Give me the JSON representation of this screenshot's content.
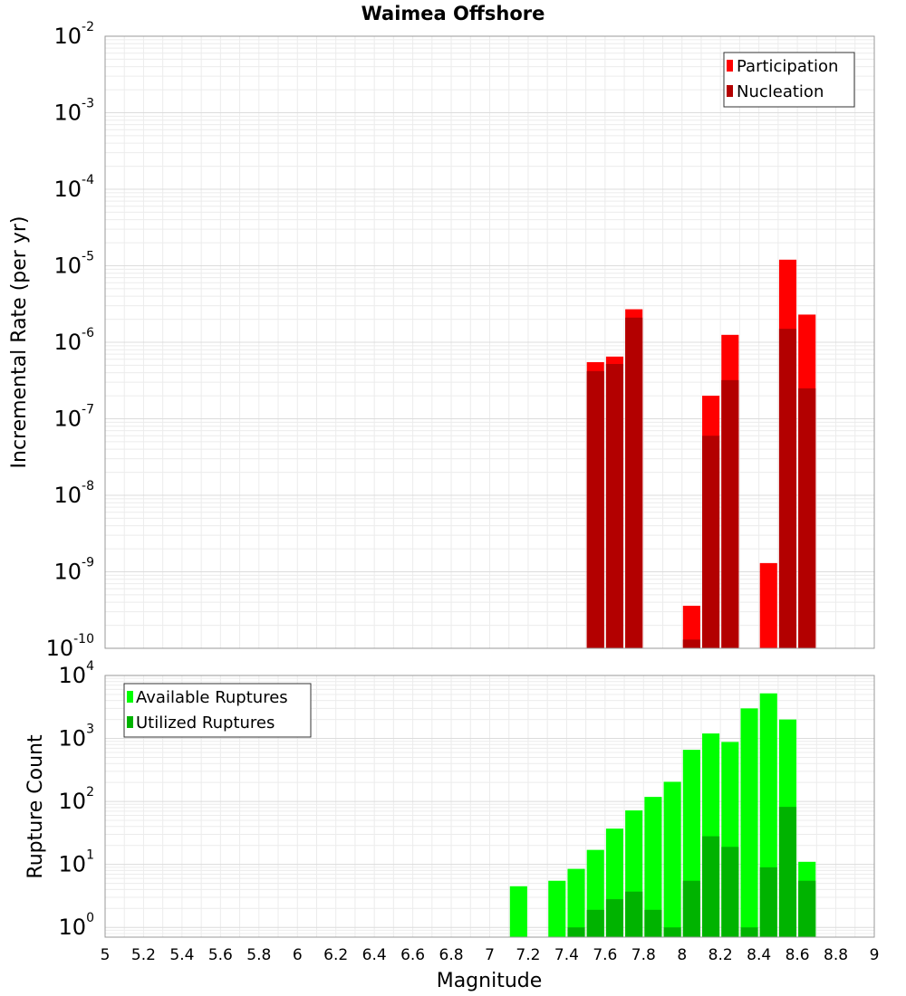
{
  "chart_data": [
    {
      "type": "bar",
      "title": "Waimea Offshore",
      "xlabel": "",
      "ylabel": "Incremental Rate (per yr)",
      "yscale": "log",
      "ylim": [
        1e-10,
        0.01
      ],
      "xlim": [
        5,
        9
      ],
      "ytick_exponents": [
        "-2",
        "-3",
        "-4",
        "-5",
        "-6",
        "-7",
        "-8",
        "-9",
        "-10"
      ],
      "ytick_base": "10",
      "grid": true,
      "legend_position": "top-right",
      "colors": {
        "Participation": "#ff0000",
        "Nucleation": "#b30000"
      },
      "bar_width": 0.09,
      "series": [
        {
          "name": "Participation",
          "x": [
            7.55,
            7.65,
            7.75,
            8.05,
            8.15,
            8.25,
            8.45,
            8.55,
            8.65
          ],
          "values": [
            5.5e-07,
            6.5e-07,
            2.7e-06,
            3.6e-10,
            2e-07,
            1.25e-06,
            1.3e-09,
            1.2e-05,
            2.3e-06
          ]
        },
        {
          "name": "Nucleation",
          "x": [
            7.55,
            7.65,
            7.75,
            8.05,
            8.15,
            8.25,
            8.55,
            8.65
          ],
          "values": [
            4.2e-07,
            5.2e-07,
            2.1e-06,
            1.3e-10,
            6e-08,
            3.2e-07,
            1.5e-06,
            2.5e-07
          ]
        }
      ]
    },
    {
      "type": "bar",
      "title": "",
      "xlabel": "Magnitude",
      "ylabel": "Rupture Count",
      "yscale": "log",
      "ylim": [
        0.7,
        10000
      ],
      "xlim": [
        5,
        9
      ],
      "xticks": [
        "5",
        "5.2",
        "5.4",
        "5.6",
        "5.8",
        "6",
        "6.2",
        "6.4",
        "6.6",
        "6.8",
        "7",
        "7.2",
        "7.4",
        "7.6",
        "7.8",
        "8",
        "8.2",
        "8.4",
        "8.6",
        "8.8",
        "9"
      ],
      "ytick_exponents": [
        "4",
        "3",
        "2",
        "1",
        "0"
      ],
      "ytick_base": "10",
      "grid": true,
      "legend_position": "top-left",
      "colors": {
        "Available Ruptures": "#00ff00",
        "Utilized Ruptures": "#00b300"
      },
      "bar_width": 0.09,
      "series": [
        {
          "name": "Available Ruptures",
          "x": [
            7.15,
            7.35,
            7.45,
            7.55,
            7.65,
            7.75,
            7.85,
            7.95,
            8.05,
            8.15,
            8.25,
            8.35,
            8.45,
            8.55,
            8.65
          ],
          "values": [
            4.5,
            5.5,
            8.5,
            17,
            37,
            72,
            118,
            205,
            660,
            1200,
            880,
            3000,
            5200,
            2000,
            11
          ]
        },
        {
          "name": "Utilized Ruptures",
          "x": [
            7.45,
            7.55,
            7.65,
            7.75,
            7.85,
            7.95,
            8.05,
            8.15,
            8.25,
            8.35,
            8.45,
            8.55,
            8.65
          ],
          "values": [
            1,
            1.9,
            2.8,
            3.7,
            1.9,
            1,
            5.5,
            28,
            19,
            1,
            9,
            82,
            5.5
          ]
        }
      ]
    }
  ]
}
